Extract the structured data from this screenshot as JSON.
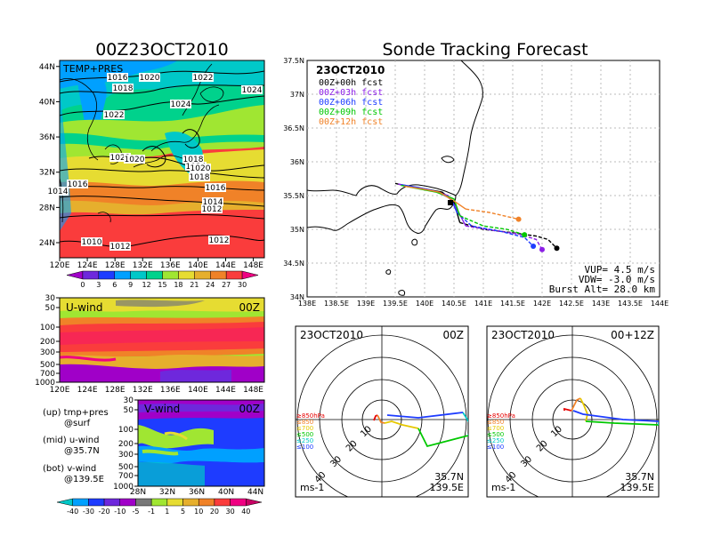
{
  "left_title": "00Z23OCT2010",
  "right_title": "Sonde Tracking Forecast",
  "map_panel": {
    "label": "TEMP+PRES",
    "x_ticks": [
      "120E",
      "124E",
      "128E",
      "132E",
      "136E",
      "140E",
      "144E",
      "148E"
    ],
    "y_ticks": [
      "24N",
      "28N",
      "32N",
      "36N",
      "40N",
      "44N"
    ],
    "isobar_labels": [
      "1016",
      "1020",
      "1018",
      "1022",
      "1024",
      "1022",
      "1024",
      "1022",
      "1020",
      "1018",
      "1024",
      "1020",
      "1018",
      "1016",
      "1014",
      "1016",
      "1014",
      "1012",
      "1010",
      "1012",
      "1012"
    ],
    "colorbar_labels": [
      "0",
      "3",
      "6",
      "9",
      "12",
      "15",
      "18",
      "21",
      "24",
      "27",
      "30"
    ],
    "colorbar_colors": [
      "#a000c8",
      "#6e28dc",
      "#1e3cff",
      "#00a0ff",
      "#00c8c8",
      "#00d28c",
      "#a0e632",
      "#e6dc32",
      "#e6af2d",
      "#f08228",
      "#fa3c3c",
      "#f00082"
    ]
  },
  "uwind_panel": {
    "label": "U-wind",
    "time": "00Z",
    "y_ticks": [
      "30",
      "50",
      "100",
      "200",
      "300",
      "500",
      "700",
      "1000"
    ],
    "x_ticks": [
      "120E",
      "124E",
      "128E",
      "132E",
      "136E",
      "140E",
      "144E",
      "148E"
    ]
  },
  "vwind_panel": {
    "label": "V-wind",
    "time": "00Z",
    "y_ticks": [
      "30",
      "50",
      "100",
      "200",
      "300",
      "500",
      "700",
      "1000"
    ],
    "x_ticks": [
      "28N",
      "32N",
      "36N",
      "40N",
      "44N"
    ]
  },
  "notes": [
    {
      "a": "(up) tmp+pres",
      "b": "@surf"
    },
    {
      "a": "(mid) u-wind",
      "b": "@35.7N"
    },
    {
      "a": "(bot) v-wind",
      "b": "@139.5E"
    }
  ],
  "wind_colorbar": {
    "labels": [
      "-40",
      "-30",
      "-20",
      "-10",
      "-5",
      "-1",
      "1",
      "5",
      "10",
      "20",
      "30",
      "40"
    ],
    "colors": [
      "#00c8c8",
      "#00a0ff",
      "#1e3cff",
      "#6e28dc",
      "#a000c8",
      "#787878",
      "#a0e632",
      "#e6dc32",
      "#e6af2d",
      "#f08228",
      "#fa3c3c",
      "#f00082",
      "#c80064"
    ]
  },
  "track_panel": {
    "date": "23OCT2010",
    "legend": [
      {
        "label": "00Z+00h fcst",
        "color": "#000000"
      },
      {
        "label": "00Z+03h fcst",
        "color": "#8c1ee6"
      },
      {
        "label": "00Z+06h fcst",
        "color": "#1e3cff"
      },
      {
        "label": "00Z+09h fcst",
        "color": "#00c800"
      },
      {
        "label": "00Z+12h fcst",
        "color": "#f08228"
      }
    ],
    "x_ticks": [
      "138E",
      "138.5E",
      "139E",
      "139.5E",
      "140E",
      "140.5E",
      "141E",
      "141.5E",
      "142E",
      "142.5E",
      "143E",
      "143.5E",
      "144E"
    ],
    "y_ticks": [
      "34N",
      "34.5N",
      "35N",
      "35.5N",
      "36N",
      "36.5N",
      "37N",
      "37.5N"
    ],
    "vup": "VUP=  4.5  m/s",
    "vdw": "VDW= -3.0  m/s",
    "burst": "Burst Alt=  28.0  km",
    "chart_data": {
      "type": "line",
      "xlim": [
        138,
        144
      ],
      "ylim": [
        34,
        37.5
      ],
      "series": [
        {
          "name": "00Z+00h fcst",
          "color": "#000000",
          "points": [
            [
              139.5,
              35.68
            ],
            [
              139.7,
              35.64
            ],
            [
              140.0,
              35.6
            ],
            [
              140.3,
              35.55
            ],
            [
              140.5,
              35.4
            ],
            [
              140.6,
              35.1
            ],
            [
              141.0,
              35.0
            ],
            [
              141.5,
              34.95
            ],
            [
              141.9,
              34.9
            ],
            [
              142.1,
              34.85
            ],
            [
              142.25,
              34.72
            ]
          ]
        },
        {
          "name": "00Z+03h fcst",
          "color": "#8c1ee6",
          "points": [
            [
              139.55,
              35.67
            ],
            [
              139.8,
              35.63
            ],
            [
              140.1,
              35.58
            ],
            [
              140.4,
              35.5
            ],
            [
              140.55,
              35.3
            ],
            [
              140.7,
              35.05
            ],
            [
              141.2,
              34.98
            ],
            [
              141.6,
              34.93
            ],
            [
              141.9,
              34.85
            ],
            [
              142.0,
              34.7
            ]
          ]
        },
        {
          "name": "00Z+06h fcst",
          "color": "#1e3cff",
          "points": [
            [
              139.6,
              35.66
            ],
            [
              139.9,
              35.62
            ],
            [
              140.2,
              35.56
            ],
            [
              140.45,
              35.45
            ],
            [
              140.55,
              35.25
            ],
            [
              140.8,
              35.05
            ],
            [
              141.3,
              34.97
            ],
            [
              141.7,
              34.88
            ],
            [
              141.85,
              34.75
            ]
          ]
        },
        {
          "name": "00Z+09h fcst",
          "color": "#00c800",
          "points": [
            [
              139.6,
              35.65
            ],
            [
              139.9,
              35.6
            ],
            [
              140.2,
              35.55
            ],
            [
              140.5,
              35.45
            ],
            [
              140.6,
              35.2
            ],
            [
              141.0,
              35.05
            ],
            [
              141.4,
              35.0
            ],
            [
              141.7,
              34.92
            ]
          ]
        },
        {
          "name": "00Z+12h fcst",
          "color": "#f08228",
          "points": [
            [
              139.65,
              35.64
            ],
            [
              139.95,
              35.6
            ],
            [
              140.25,
              35.55
            ],
            [
              140.5,
              35.42
            ],
            [
              140.7,
              35.3
            ],
            [
              141.1,
              35.25
            ],
            [
              141.45,
              35.18
            ],
            [
              141.6,
              35.15
            ]
          ]
        }
      ]
    }
  },
  "hodo_left": {
    "date": "23OCT2010",
    "time": "00Z",
    "lat": "35.7N",
    "lon": "139.5E",
    "unit": "ms-1",
    "ring_labels": [
      "10",
      "20",
      "30",
      "40"
    ],
    "legend": [
      {
        "label": "≥850hPa",
        "color": "#e60000"
      },
      {
        "label": "≤850",
        "color": "#f08228"
      },
      {
        "label": "≤700",
        "color": "#e6c800"
      },
      {
        "label": "≤500",
        "color": "#00c800"
      },
      {
        "label": "≤250",
        "color": "#00c8c8"
      },
      {
        "label": "≤100",
        "color": "#1e3cff"
      }
    ]
  },
  "hodo_right": {
    "date": "23OCT2010",
    "time": "00+12Z",
    "lat": "35.7N",
    "lon": "139.5E",
    "unit": "ms-1",
    "ring_labels": [
      "10",
      "20",
      "30",
      "40"
    ]
  }
}
